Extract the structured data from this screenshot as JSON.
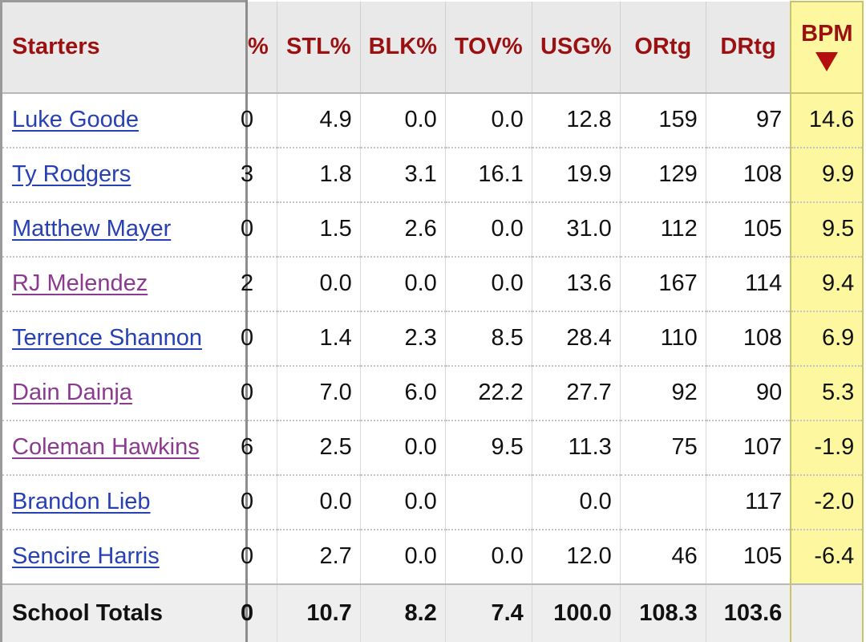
{
  "columns": {
    "name": "Starters",
    "partial": "%",
    "stl": "STL%",
    "blk": "BLK%",
    "tov": "TOV%",
    "usg": "USG%",
    "ortg": "ORtg",
    "drtg": "DRtg",
    "bpm": "BPM"
  },
  "sort": {
    "column": "BPM",
    "direction": "descending",
    "icon": "sort-down-triangle-icon"
  },
  "colors": {
    "header_text": "#9b1111",
    "sorted_column_bg": "#fdf8a0",
    "link": "#2740b3",
    "visited_link": "#8b3a8f"
  },
  "rows": [
    {
      "name": "Luke Goode",
      "partial": "0",
      "stl": "4.9",
      "blk": "0.0",
      "tov": "0.0",
      "usg": "12.8",
      "ortg": "159",
      "drtg": "97",
      "bpm": "14.6",
      "visited": false
    },
    {
      "name": "Ty Rodgers",
      "partial": "3",
      "stl": "1.8",
      "blk": "3.1",
      "tov": "16.1",
      "usg": "19.9",
      "ortg": "129",
      "drtg": "108",
      "bpm": "9.9",
      "visited": false
    },
    {
      "name": "Matthew Mayer",
      "partial": "0",
      "stl": "1.5",
      "blk": "2.6",
      "tov": "0.0",
      "usg": "31.0",
      "ortg": "112",
      "drtg": "105",
      "bpm": "9.5",
      "visited": false
    },
    {
      "name": "RJ Melendez",
      "partial": "2",
      "stl": "0.0",
      "blk": "0.0",
      "tov": "0.0",
      "usg": "13.6",
      "ortg": "167",
      "drtg": "114",
      "bpm": "9.4",
      "visited": true
    },
    {
      "name": "Terrence Shannon",
      "partial": "0",
      "stl": "1.4",
      "blk": "2.3",
      "tov": "8.5",
      "usg": "28.4",
      "ortg": "110",
      "drtg": "108",
      "bpm": "6.9",
      "visited": false
    },
    {
      "name": "Dain Dainja",
      "partial": "0",
      "stl": "7.0",
      "blk": "6.0",
      "tov": "22.2",
      "usg": "27.7",
      "ortg": "92",
      "drtg": "90",
      "bpm": "5.3",
      "visited": true
    },
    {
      "name": "Coleman Hawkins",
      "partial": "6",
      "stl": "2.5",
      "blk": "0.0",
      "tov": "9.5",
      "usg": "11.3",
      "ortg": "75",
      "drtg": "107",
      "bpm": "-1.9",
      "visited": true
    },
    {
      "name": "Brandon Lieb",
      "partial": "0",
      "stl": "0.0",
      "blk": "0.0",
      "tov": "",
      "usg": "0.0",
      "ortg": "",
      "drtg": "117",
      "bpm": "-2.0",
      "visited": false
    },
    {
      "name": "Sencire Harris",
      "partial": "0",
      "stl": "2.7",
      "blk": "0.0",
      "tov": "0.0",
      "usg": "12.0",
      "ortg": "46",
      "drtg": "105",
      "bpm": "-6.4",
      "visited": false
    }
  ],
  "totals": {
    "name": "School Totals",
    "partial": "0",
    "stl": "10.7",
    "blk": "8.2",
    "tov": "7.4",
    "usg": "100.0",
    "ortg": "108.3",
    "drtg": "103.6",
    "bpm": ""
  }
}
